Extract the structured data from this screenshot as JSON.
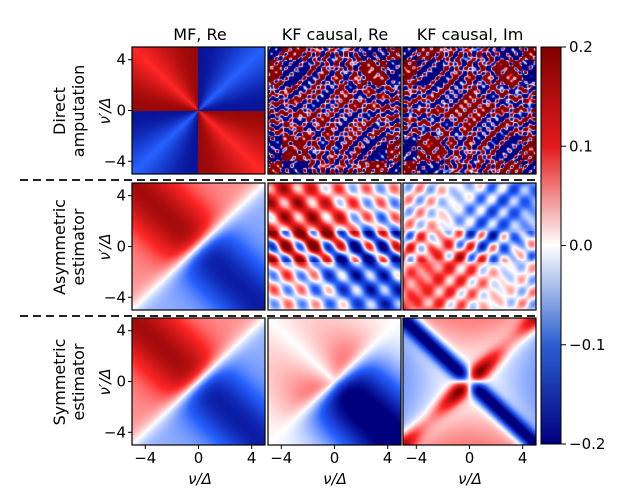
{
  "chart_data": {
    "type": "heatmap",
    "columns": [
      "MF, Re",
      "KF causal, Re",
      "KF causal, Im"
    ],
    "rows": [
      [
        "Direct",
        "amputation"
      ],
      [
        "Asymmetric",
        "estimator"
      ],
      [
        "Symmetric",
        "estimator"
      ]
    ],
    "xlabel": "ν/Δ",
    "ylabel": "ν′/Δ",
    "xlim": [
      -5,
      5
    ],
    "ylim": [
      -5,
      5
    ],
    "x_ticks": [
      "−4",
      "0",
      "4"
    ],
    "y_ticks": [
      "4",
      "0",
      "−4"
    ],
    "colorbar": {
      "min": -0.2,
      "max": 0.2,
      "ticks": [
        "0.2",
        "0.1",
        "0.0",
        "−0.1",
        "−0.2"
      ],
      "colormap": "seismic (dark blue → white → dark red)",
      "low_color": "#00008b",
      "mid_color": "#ffffff",
      "high_color": "#8b0000"
    },
    "row_separators": "dashed"
  }
}
